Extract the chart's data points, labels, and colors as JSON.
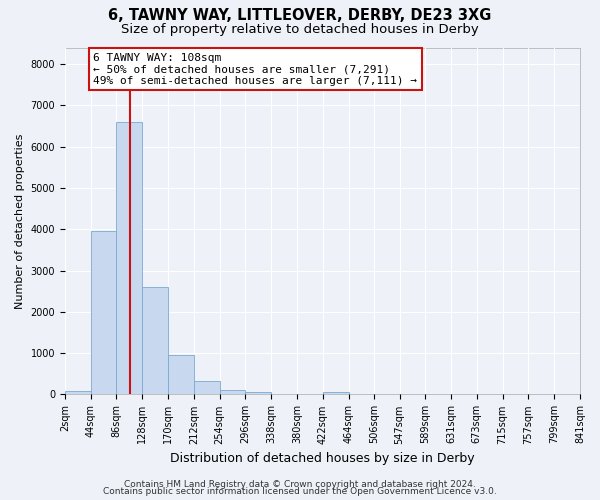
{
  "title": "6, TAWNY WAY, LITTLEOVER, DERBY, DE23 3XG",
  "subtitle": "Size of property relative to detached houses in Derby",
  "xlabel": "Distribution of detached houses by size in Derby",
  "ylabel": "Number of detached properties",
  "bar_color": "#c8d8ee",
  "bar_edge_color": "#7aaad0",
  "background_color": "#eef2f8",
  "grid_color": "#ffffff",
  "bin_edges": [
    2,
    44,
    86,
    128,
    170,
    212,
    254,
    296,
    338,
    380,
    422,
    464,
    506,
    547,
    589,
    631,
    673,
    715,
    757,
    799,
    841
  ],
  "bar_heights": [
    75,
    3950,
    6600,
    2600,
    950,
    325,
    115,
    60,
    0,
    0,
    55,
    0,
    0,
    0,
    0,
    0,
    0,
    0,
    0,
    0
  ],
  "red_line_x": 108,
  "annotation_title": "6 TAWNY WAY: 108sqm",
  "annotation_line1": "← 50% of detached houses are smaller (7,291)",
  "annotation_line2": "49% of semi-detached houses are larger (7,111) →",
  "annotation_box_facecolor": "#ffffff",
  "annotation_border_color": "#cc1111",
  "red_line_color": "#cc1111",
  "ylim": [
    0,
    8400
  ],
  "yticks": [
    0,
    1000,
    2000,
    3000,
    4000,
    5000,
    6000,
    7000,
    8000
  ],
  "tick_labels": [
    "2sqm",
    "44sqm",
    "86sqm",
    "128sqm",
    "170sqm",
    "212sqm",
    "254sqm",
    "296sqm",
    "338sqm",
    "380sqm",
    "422sqm",
    "464sqm",
    "506sqm",
    "547sqm",
    "589sqm",
    "631sqm",
    "673sqm",
    "715sqm",
    "757sqm",
    "799sqm",
    "841sqm"
  ],
  "footer1": "Contains HM Land Registry data © Crown copyright and database right 2024.",
  "footer2": "Contains public sector information licensed under the Open Government Licence v3.0.",
  "title_fontsize": 10.5,
  "subtitle_fontsize": 9.5,
  "xlabel_fontsize": 9,
  "ylabel_fontsize": 8,
  "tick_fontsize": 7,
  "annotation_fontsize": 8,
  "footer_fontsize": 6.5
}
